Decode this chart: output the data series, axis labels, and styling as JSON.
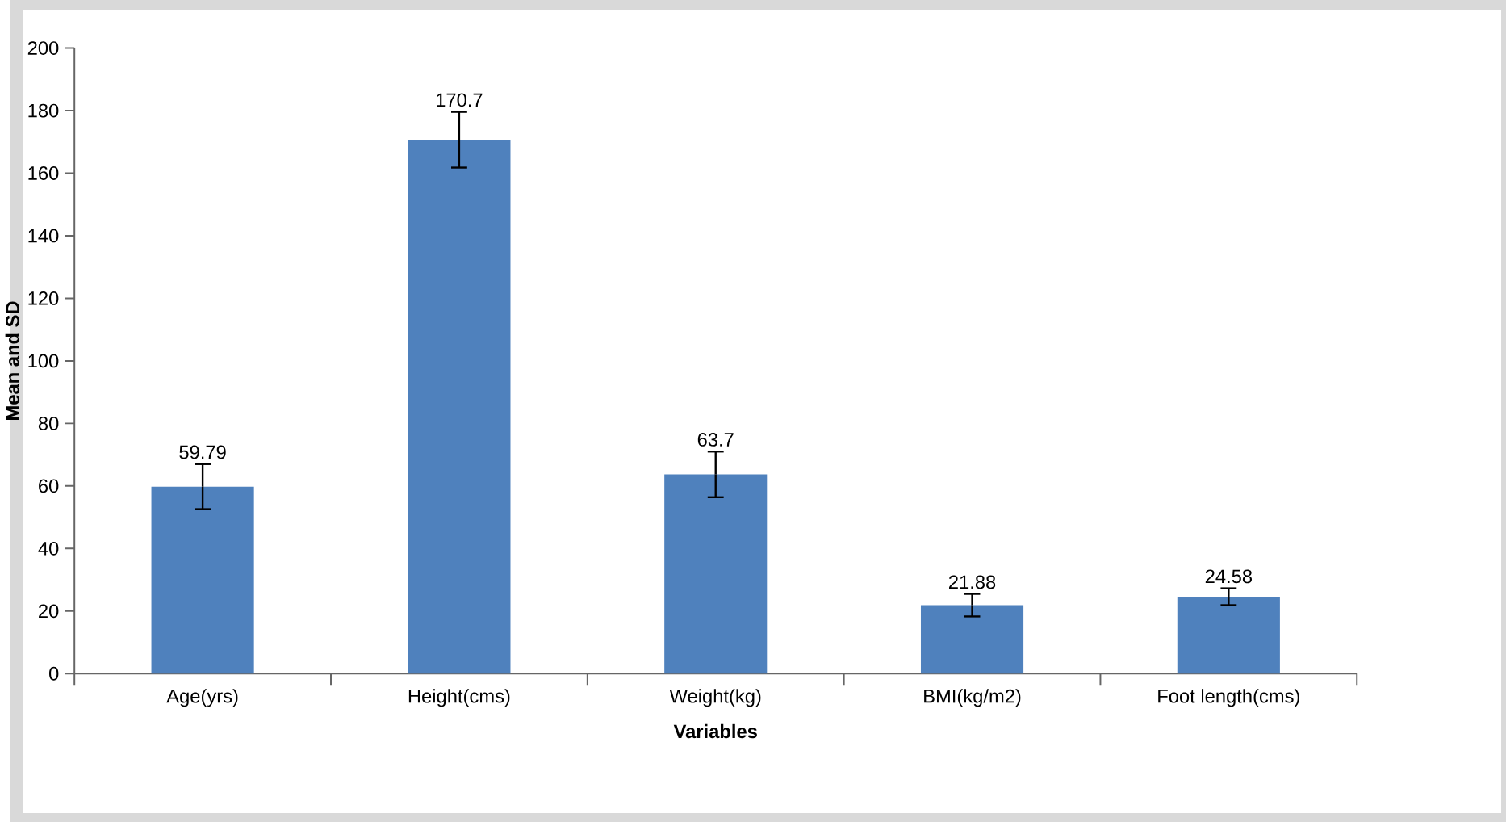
{
  "chart_data": {
    "type": "bar",
    "xlabel": "Variables",
    "ylabel": "Mean and SD",
    "categories": [
      "Age(yrs)",
      "Height(cms)",
      "Weight(kg)",
      "BMI(kg/m2)",
      "Foot length(cms)"
    ],
    "values": [
      59.79,
      170.7,
      63.7,
      21.88,
      24.58
    ],
    "errors": [
      7.2,
      8.9,
      7.3,
      3.6,
      2.7
    ],
    "color": "#4f81bd",
    "data_labels": true,
    "ylim": [
      0,
      200
    ],
    "yticks": [
      0,
      20,
      40,
      60,
      80,
      100,
      120,
      140,
      160,
      180,
      200
    ]
  }
}
